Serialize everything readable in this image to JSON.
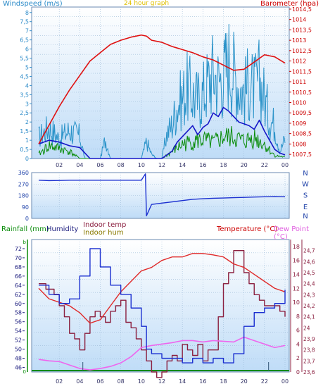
{
  "header": {
    "left": "Windspeed (m/s)",
    "center": "24 hour graph",
    "right": "Barometer (hpa)"
  },
  "colors": {
    "bg": "#ffffff",
    "plot_top": "#ffffff",
    "plot_bottom": "#bfdcf7",
    "grid": "#9bbad8",
    "wind_light": "#2b93c9",
    "wind_dark": "#1616c8",
    "green": "#0a8c0a",
    "baro": "#e01010",
    "dir": "#1a2fd0",
    "temp": "#e02a2a",
    "dew": "#ee66ee",
    "hum": "#1a2fd0",
    "inhum": "#8b2040",
    "title_blue": "#2a8ac8",
    "title_red": "#cc0000",
    "title_yellow": "#e0c000",
    "title_green": "#0a8c0a",
    "title_dark": "#202080",
    "title_olive": "#8a7a00",
    "title_magenta": "#e060e0"
  },
  "chart_data": [
    {
      "type": "line",
      "x_ticks": [
        "02",
        "04",
        "06",
        "08",
        "10",
        "12",
        "14",
        "16",
        "18",
        "20",
        "22",
        "00"
      ],
      "left_axis": {
        "label": "Windspeed (m/s)",
        "ticks": [
          "0",
          "0,5",
          "1",
          "1,5",
          "2",
          "2,5",
          "3",
          "3,5",
          "4",
          "4,5",
          "5",
          "5,5",
          "6",
          "6,5",
          "7",
          "7,5",
          "8"
        ],
        "range": [
          0,
          8.3
        ]
      },
      "right_axis": {
        "label": "Barometer (hpa)",
        "ticks": [
          "1007,5",
          "1008",
          "1008,5",
          "1009",
          "1009,5",
          "1010",
          "1010,5",
          "1011",
          "1011,5",
          "1012",
          "1012,5",
          "1013",
          "1013,5",
          "1014",
          "1014,5"
        ],
        "range": [
          1007.3,
          1014.6
        ]
      },
      "series": [
        {
          "role": "wind_gust",
          "x": [
            0,
            1,
            2,
            3,
            4,
            4.5,
            5,
            5.5,
            6,
            6.5,
            7,
            7.5,
            8,
            8.5,
            9,
            9.5,
            10,
            10.5,
            11,
            11.5,
            12,
            12.5,
            13,
            13.5,
            14,
            14.5,
            15,
            15.5,
            16,
            16.5,
            17,
            17.5,
            18,
            18.5,
            19,
            19.5,
            20,
            20.5,
            21,
            21.5,
            22,
            22.5,
            23,
            23.5,
            24
          ],
          "y": [
            1.5,
            2.2,
            1.4,
            2,
            1.6,
            0,
            0,
            0,
            0,
            1.4,
            0,
            0,
            0,
            0,
            0,
            0,
            0,
            1.2,
            0.3,
            0,
            0,
            1.8,
            2.4,
            3.8,
            4.3,
            5,
            4.5,
            4.2,
            4.6,
            5.4,
            6.1,
            5.5,
            5.8,
            7,
            6.1,
            5.3,
            4.6,
            5.5,
            4.8,
            5.6,
            4.3,
            2.8,
            2.4,
            0.5,
            1.4
          ]
        },
        {
          "role": "wind_avg",
          "x": [
            0,
            1,
            2,
            3,
            4,
            5,
            6,
            7,
            8,
            9,
            10,
            11,
            12,
            13,
            13.5,
            14,
            14.5,
            15,
            15.5,
            16,
            16.5,
            17,
            17.5,
            18,
            18.5,
            19,
            19.5,
            20,
            20.5,
            21,
            21.5,
            22,
            22.5,
            23,
            23.5,
            24
          ],
          "y": [
            0.8,
            1,
            0.9,
            0.7,
            0.6,
            0,
            0,
            0,
            0,
            0,
            0,
            0,
            0,
            0.4,
            0.9,
            1.2,
            1.5,
            1.8,
            1.3,
            1.7,
            1.9,
            2.5,
            2.3,
            2.8,
            2.6,
            2.3,
            2,
            1.9,
            1.8,
            1.6,
            2.1,
            1.5,
            1,
            0.5,
            0.3,
            0.2
          ]
        },
        {
          "role": "wind_ground",
          "x": [
            0,
            1,
            2,
            3,
            4,
            5,
            6,
            7,
            8,
            9,
            10,
            11,
            12,
            13,
            14,
            15,
            16,
            17,
            18,
            19,
            20,
            21,
            22,
            23,
            24
          ],
          "y": [
            0.3,
            0.9,
            0.7,
            0.5,
            0,
            0,
            0,
            0,
            0,
            0,
            0,
            0,
            0,
            0.5,
            1,
            1.2,
            1.3,
            1.1,
            1.5,
            1.5,
            1.2,
            1.5,
            1,
            0.2,
            0.1
          ]
        },
        {
          "role": "barometer",
          "x": [
            0,
            1,
            2,
            3,
            4,
            5,
            6,
            7,
            8,
            9,
            10,
            10.5,
            11,
            12,
            13,
            14,
            15,
            16,
            17,
            18,
            19,
            20,
            21,
            22,
            23,
            24
          ],
          "y": [
            1008,
            1008.9,
            1009.8,
            1010.6,
            1011.3,
            1012,
            1012.4,
            1012.8,
            1013,
            1013.15,
            1013.25,
            1013.2,
            1013,
            1012.9,
            1012.7,
            1012.55,
            1012.4,
            1012.2,
            1012.05,
            1011.8,
            1011.55,
            1011.6,
            1011.95,
            1012.3,
            1012.2,
            1011.9
          ]
        }
      ]
    },
    {
      "type": "line",
      "x_ticks": [],
      "left_axis": {
        "ticks": [
          "0",
          "90",
          "180",
          "270",
          "360"
        ],
        "range": [
          0,
          360
        ]
      },
      "right_axis": {
        "ticks": [
          "N",
          "W",
          "S",
          "E",
          "N"
        ]
      },
      "series": [
        {
          "role": "wind_direction",
          "x": [
            0,
            1,
            2,
            3,
            4,
            5,
            6,
            7,
            8,
            9,
            10,
            10.4,
            10.5,
            11,
            12,
            13,
            14,
            15,
            16,
            17,
            18,
            19,
            20,
            21,
            22,
            23,
            24
          ],
          "y": [
            300,
            297,
            298,
            300,
            300,
            300,
            300,
            300,
            300,
            300,
            300,
            350,
            20,
            110,
            120,
            130,
            140,
            150,
            155,
            158,
            160,
            163,
            165,
            168,
            170,
            172,
            170
          ]
        }
      ]
    },
    {
      "type": "line",
      "x_ticks": [
        "02",
        "04",
        "06",
        "08",
        "10",
        "12",
        "14",
        "16",
        "18",
        "20",
        "22",
        "00"
      ],
      "left_axis": {
        "ticks": [
          "46",
          "48",
          "50",
          "52",
          "54",
          "56",
          "58",
          "60",
          "62",
          "64",
          "66",
          "68",
          "70",
          "72"
        ],
        "range": [
          45,
          74
        ]
      },
      "right_axis": {
        "ticks": [
          "23,6",
          "23,7",
          "23,8",
          "23,9",
          "24",
          "24,1",
          "24,2",
          "24,3",
          "24,4",
          "24,5",
          "24,6",
          "24,7"
        ],
        "range": [
          23.6,
          24.8
        ]
      },
      "mid_axis": {
        "ticks": [
          "0",
          "2",
          "4",
          "6",
          "8",
          "10",
          "12",
          "14",
          "16",
          "18"
        ],
        "range": [
          0,
          19
        ]
      },
      "labels": {
        "rainfall": "Rainfall (mm)",
        "humidity": "Humidity",
        "indoor_temp": "Indoor temp",
        "indoor_hum": "Indoor hum",
        "temperature": "Temperature (°C)",
        "dew_point": "Dew Point (°C)"
      },
      "series": [
        {
          "role": "humidity",
          "x": [
            0,
            1,
            2,
            3,
            4,
            5,
            6,
            7,
            8,
            9,
            10,
            10.5,
            11,
            12,
            13,
            14,
            15,
            16,
            17,
            18,
            19,
            20,
            21,
            22,
            23,
            24
          ],
          "y": [
            64,
            62,
            60,
            61,
            66,
            72,
            68,
            64,
            62,
            59,
            55,
            50,
            49,
            48,
            48,
            47,
            48,
            47,
            48,
            47,
            49,
            55,
            58,
            59,
            60,
            63
          ]
        },
        {
          "role": "temperature",
          "x": [
            0,
            1,
            2,
            3,
            4,
            5,
            6,
            7,
            8,
            9,
            10,
            11,
            12,
            13,
            14,
            15,
            16,
            17,
            18,
            19,
            20,
            21,
            22,
            23,
            24
          ],
          "y": [
            12,
            10.5,
            10,
            9.5,
            8.5,
            7,
            7.5,
            9.5,
            11.5,
            13,
            14.5,
            15,
            16,
            16.5,
            16.5,
            17,
            17,
            16.8,
            16.5,
            15.5,
            15,
            14,
            13,
            12,
            11.5
          ]
        },
        {
          "role": "dew_point",
          "x": [
            0,
            1,
            2,
            3,
            4,
            5,
            6,
            7,
            8,
            9,
            10,
            11,
            12,
            13,
            14,
            15,
            16,
            17,
            18,
            19,
            20,
            21,
            22,
            23,
            24
          ],
          "y": [
            1.8,
            1.6,
            1.5,
            1,
            0.5,
            0.3,
            0.5,
            0.8,
            1.3,
            2.2,
            3.5,
            3.8,
            4,
            4.2,
            4.5,
            4.5,
            4.3,
            4.5,
            4.4,
            4.3,
            5,
            4.5,
            4,
            3.5,
            3.8
          ]
        },
        {
          "role": "indoor_hum",
          "x": [
            0,
            0.7,
            1.5,
            2,
            2.5,
            3,
            3.5,
            4,
            4.5,
            5,
            5.5,
            6,
            6.5,
            7,
            7.5,
            8,
            8.5,
            9,
            9.5,
            10,
            10.5,
            11,
            11.5,
            12,
            12.5,
            13,
            13.5,
            14,
            14.5,
            15,
            15.5,
            16,
            16.5,
            17,
            17.5,
            18,
            18.5,
            19,
            19.5,
            20,
            20.5,
            21,
            21.5,
            22,
            22.5,
            23,
            23.5,
            24
          ],
          "y": [
            24.4,
            24.35,
            24.3,
            24.2,
            24.1,
            23.95,
            23.9,
            23.8,
            23.95,
            24.1,
            24.15,
            24.1,
            24.05,
            24.15,
            24.2,
            24.25,
            24.05,
            24,
            23.9,
            23.8,
            23.7,
            23.6,
            23.55,
            23.6,
            23.7,
            23.75,
            23.7,
            23.85,
            23.8,
            23.75,
            23.85,
            23.7,
            23.8,
            23.8,
            24.1,
            24.4,
            24.5,
            24.7,
            24.7,
            24.5,
            24.4,
            24.3,
            24.25,
            24.2,
            24.2,
            24.2,
            24.15,
            24.1
          ]
        }
      ]
    }
  ]
}
